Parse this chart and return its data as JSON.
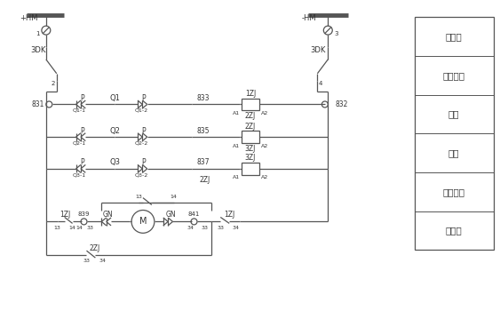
{
  "background": "#ffffff",
  "line_color": "#555555",
  "text_color": "#333333",
  "fig_width": 5.63,
  "fig_height": 3.5,
  "legend_labels": [
    "小母线",
    "空气开关",
    "正转",
    "反转",
    "合闸闭锁",
    "电动机"
  ]
}
